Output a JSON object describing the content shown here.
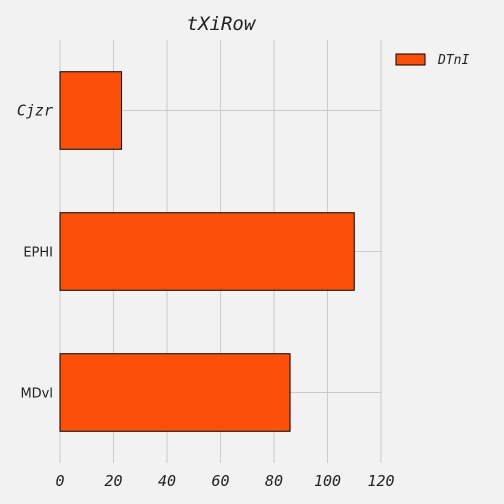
{
  "chart_data": {
    "type": "bar",
    "orientation": "horizontal",
    "title": "tXiRow",
    "xlabel": "",
    "ylabel": "",
    "categories": [
      "Cjzr",
      "EPHI",
      "MDvl"
    ],
    "series": [
      {
        "name": "DTnI",
        "values": [
          23,
          110,
          86
        ],
        "color": "#fc4f08"
      }
    ],
    "xlim": [
      0,
      120
    ],
    "xticks": [
      0,
      20,
      40,
      60,
      80,
      100,
      120
    ],
    "grid": true,
    "legend_position": "top-right",
    "bar_edge_color": "#000000",
    "background_color": "#f2f2f2",
    "grid_color": "#cbcbcb"
  }
}
